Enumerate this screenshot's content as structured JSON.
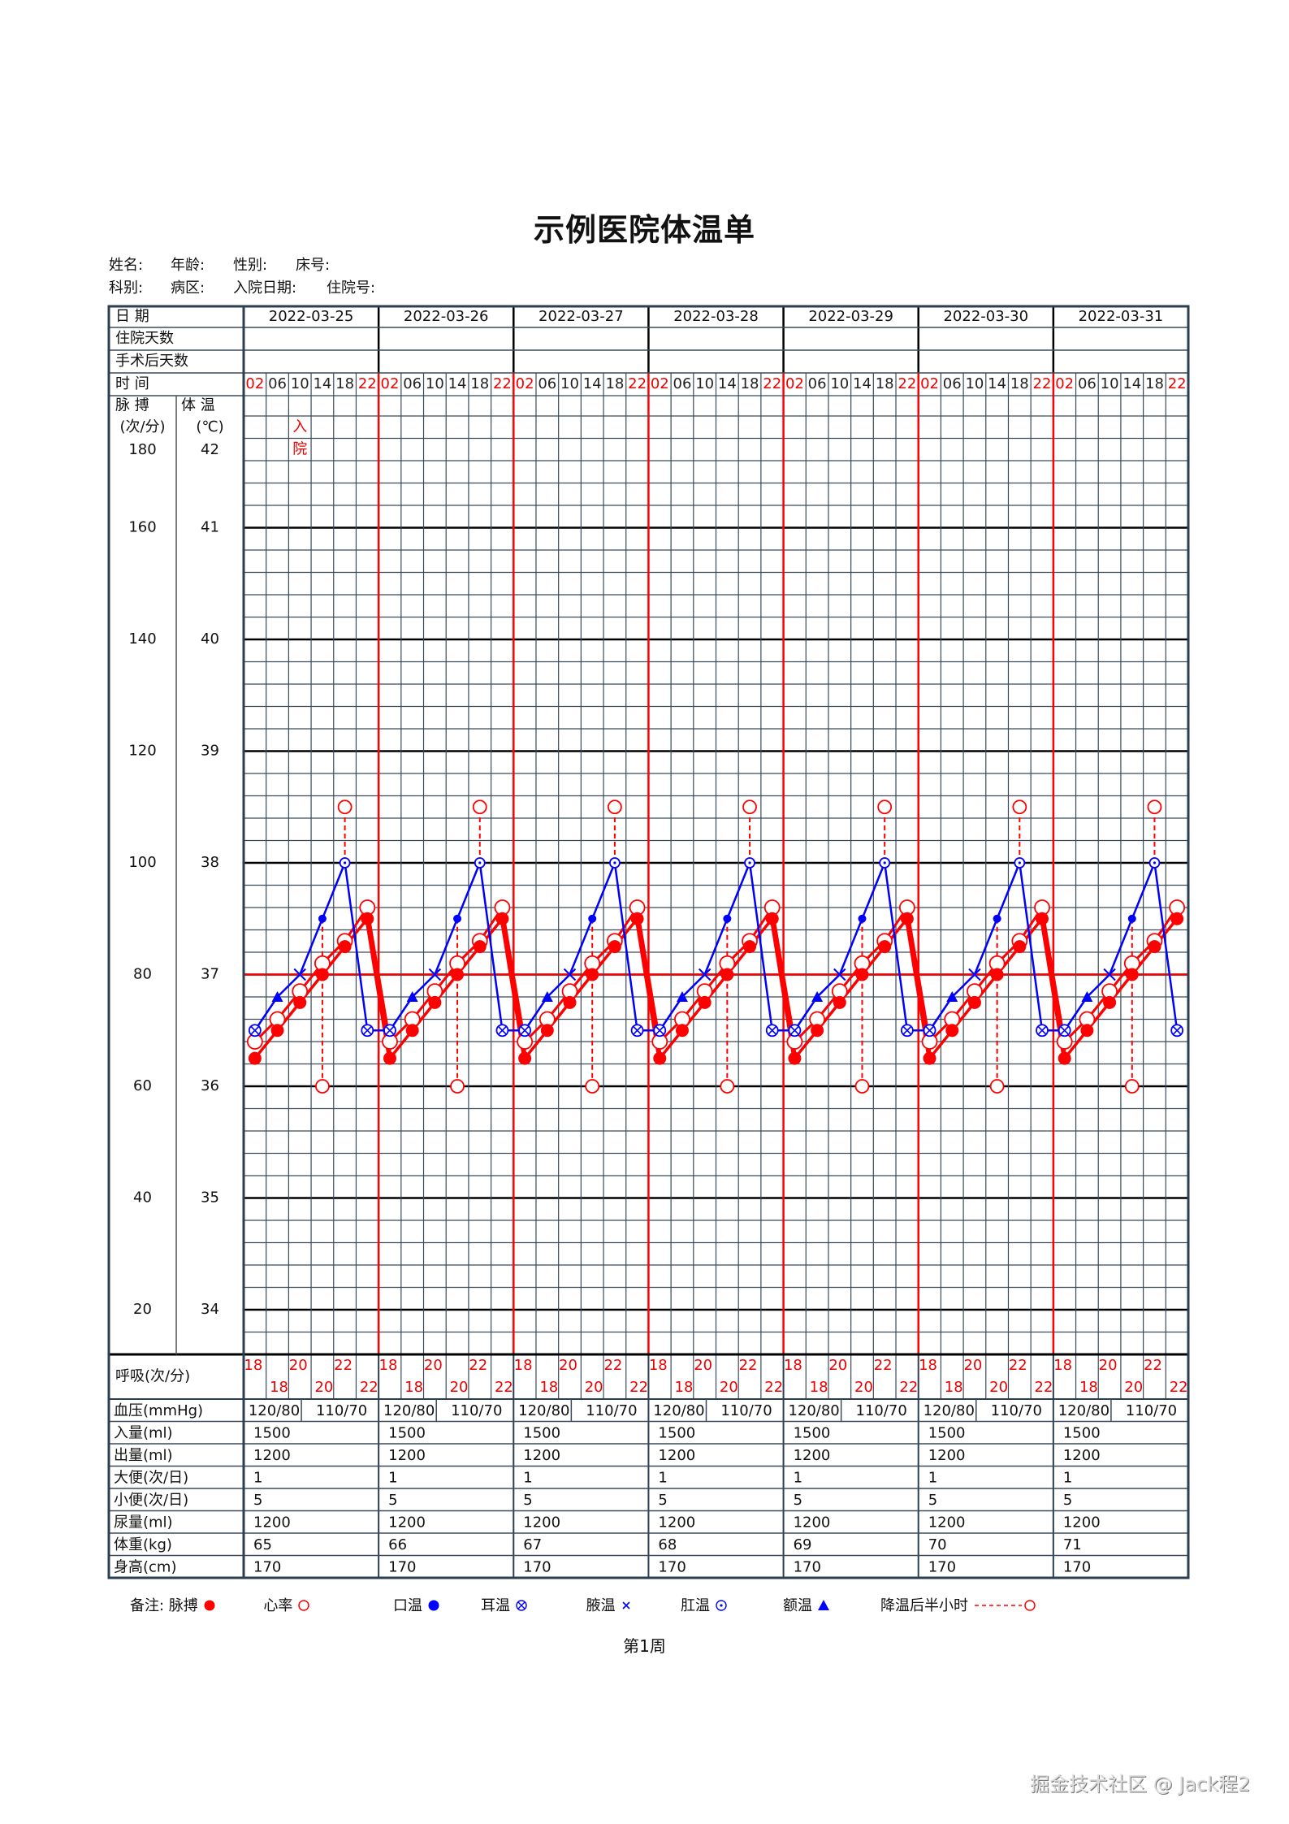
{
  "title": "示例医院体温单",
  "patient_info": {
    "row1": [
      {
        "label": "姓名:",
        "value": ""
      },
      {
        "label": "年龄:",
        "value": ""
      },
      {
        "label": "性别:",
        "value": ""
      },
      {
        "label": "床号:",
        "value": ""
      }
    ],
    "row2": [
      {
        "label": "科别:",
        "value": ""
      },
      {
        "label": "病区:",
        "value": ""
      },
      {
        "label": "入院日期:",
        "value": ""
      },
      {
        "label": "住院号:",
        "value": ""
      }
    ]
  },
  "row_labels": {
    "date": "日 期",
    "hospital_days": "住院天数",
    "post_op_days": "手术后天数",
    "time": "时 间",
    "pulse": "脉 搏",
    "temp": "体 温",
    "pulse_unit": "(次/分)",
    "temp_unit": "(℃)",
    "respiration": "呼吸(次/分)",
    "blood_pressure": "血压(mmHg)",
    "intake": "入量(ml)",
    "output": "出量(ml)",
    "stool": "大便(次/日)",
    "urination": "小便(次/日)",
    "urine_volume": "尿量(ml)",
    "weight": "体重(kg)",
    "height": "身高(cm)"
  },
  "time_slots": [
    "02",
    "06",
    "10",
    "14",
    "18",
    "22"
  ],
  "red_time_slots": [
    "02",
    "22"
  ],
  "pulse_axis": [
    180,
    160,
    140,
    120,
    100,
    80,
    60,
    40,
    20
  ],
  "temp_axis": [
    42,
    41,
    40,
    39,
    38,
    37,
    36,
    35,
    34
  ],
  "admission_note": [
    "入",
    "院"
  ],
  "days": [
    {
      "date": "2022-03-25",
      "hospital_days": "",
      "post_op_days": "",
      "respiration": [
        18,
        18,
        20,
        20,
        22,
        22
      ],
      "bp": [
        "120/80",
        "110/70"
      ],
      "intake": "1500",
      "output": "1200",
      "stool": "1",
      "urination": "5",
      "urine_volume": "1200",
      "weight": "65",
      "height": "170"
    },
    {
      "date": "2022-03-26",
      "hospital_days": "",
      "post_op_days": "",
      "respiration": [
        18,
        18,
        20,
        20,
        22,
        22
      ],
      "bp": [
        "120/80",
        "110/70"
      ],
      "intake": "1500",
      "output": "1200",
      "stool": "1",
      "urination": "5",
      "urine_volume": "1200",
      "weight": "66",
      "height": "170"
    },
    {
      "date": "2022-03-27",
      "hospital_days": "",
      "post_op_days": "",
      "respiration": [
        18,
        18,
        20,
        20,
        22,
        22
      ],
      "bp": [
        "120/80",
        "110/70"
      ],
      "intake": "1500",
      "output": "1200",
      "stool": "1",
      "urination": "5",
      "urine_volume": "1200",
      "weight": "67",
      "height": "170"
    },
    {
      "date": "2022-03-28",
      "hospital_days": "",
      "post_op_days": "",
      "respiration": [
        18,
        18,
        20,
        20,
        22,
        22
      ],
      "bp": [
        "120/80",
        "110/70"
      ],
      "intake": "1500",
      "output": "1200",
      "stool": "1",
      "urination": "5",
      "urine_volume": "1200",
      "weight": "68",
      "height": "170"
    },
    {
      "date": "2022-03-29",
      "hospital_days": "",
      "post_op_days": "",
      "respiration": [
        18,
        18,
        20,
        20,
        22,
        22
      ],
      "bp": [
        "120/80",
        "110/70"
      ],
      "intake": "1500",
      "output": "1200",
      "stool": "1",
      "urination": "5",
      "urine_volume": "1200",
      "weight": "69",
      "height": "170"
    },
    {
      "date": "2022-03-30",
      "hospital_days": "",
      "post_op_days": "",
      "respiration": [
        18,
        18,
        20,
        20,
        22,
        22
      ],
      "bp": [
        "120/80",
        "110/70"
      ],
      "intake": "1500",
      "output": "1200",
      "stool": "1",
      "urination": "5",
      "urine_volume": "1200",
      "weight": "70",
      "height": "170"
    },
    {
      "date": "2022-03-31",
      "hospital_days": "",
      "post_op_days": "",
      "respiration": [
        18,
        18,
        20,
        20,
        22,
        22
      ],
      "bp": [
        "120/80",
        "110/70"
      ],
      "intake": "1500",
      "output": "1200",
      "stool": "1",
      "urination": "5",
      "urine_volume": "1200",
      "weight": "71",
      "height": "170"
    }
  ],
  "legend": {
    "prefix": "备注:",
    "items": [
      {
        "label": "脉搏",
        "symbol": "filled-circle",
        "color": "#ff0000"
      },
      {
        "label": "心率",
        "symbol": "open-circle",
        "color": "#ff0000"
      },
      {
        "label": "口温",
        "symbol": "filled-circle",
        "color": "#0000ff"
      },
      {
        "label": "耳温",
        "symbol": "circle-x",
        "color": "#0000ff"
      },
      {
        "label": "腋温",
        "symbol": "x",
        "color": "#0000ff"
      },
      {
        "label": "肛温",
        "symbol": "circle-dot",
        "color": "#0000ff"
      },
      {
        "label": "额温",
        "symbol": "triangle",
        "color": "#0000ff"
      },
      {
        "label": "降温后半小时",
        "symbol": "dashed-open-circle",
        "color": "#ff0000"
      }
    ]
  },
  "week_label": "第1周",
  "watermark": "掘金技术社区 @ Jack程2",
  "colors": {
    "temp": "#0000ff",
    "pulse": "#ff0000",
    "heart_rate": "#ff0000",
    "grid": "#2c3e50",
    "day_divider": "#ff0000",
    "normal_line": "#ff0000"
  },
  "chart_data": {
    "type": "line",
    "title": "示例医院体温单",
    "x": [
      "03-25 02",
      "03-25 06",
      "03-25 10",
      "03-25 14",
      "03-25 18",
      "03-25 22",
      "03-26 02",
      "03-26 06",
      "03-26 10",
      "03-26 14",
      "03-26 18",
      "03-26 22",
      "03-27 02",
      "03-27 06",
      "03-27 10",
      "03-27 14",
      "03-27 18",
      "03-27 22",
      "03-28 02",
      "03-28 06",
      "03-28 10",
      "03-28 14",
      "03-28 18",
      "03-28 22",
      "03-29 02",
      "03-29 06",
      "03-29 10",
      "03-29 14",
      "03-29 18",
      "03-29 22",
      "03-30 02",
      "03-30 06",
      "03-30 10",
      "03-30 14",
      "03-30 18",
      "03-30 22",
      "03-31 02",
      "03-31 06",
      "03-31 10",
      "03-31 14",
      "03-31 18",
      "03-31 22"
    ],
    "xlabel": "时间",
    "ylabel_left": "脉搏(次/分)",
    "ylabel_right": "体温(℃)",
    "ylim_temp": [
      33.6,
      42
    ],
    "ylim_pulse": [
      12,
      180
    ],
    "grid": true,
    "daily_pattern": {
      "temperature_c": [
        36.5,
        36.8,
        37.0,
        37.5,
        38.0,
        36.5
      ],
      "temperature_method": [
        "耳温",
        "额温",
        "腋温",
        "口温",
        "肛温",
        "耳温"
      ],
      "pulse_bpm": [
        65,
        70,
        75,
        80,
        85,
        90
      ],
      "heart_rate_bpm": [
        68,
        72,
        77,
        82,
        86,
        92
      ],
      "cooling_after_half_hour": [
        {
          "slot": "14",
          "temp_c": 36.0,
          "from_c": 37.5
        },
        {
          "slot": "18",
          "temp_c": 38.5,
          "from_c": 38.0
        }
      ]
    },
    "series": [
      {
        "name": "体温",
        "unit": "℃",
        "color": "#0000ff",
        "values": [
          36.5,
          36.8,
          37.0,
          37.5,
          38.0,
          36.5,
          36.5,
          36.8,
          37.0,
          37.5,
          38.0,
          36.5,
          36.5,
          36.8,
          37.0,
          37.5,
          38.0,
          36.5,
          36.5,
          36.8,
          37.0,
          37.5,
          38.0,
          36.5,
          36.5,
          36.8,
          37.0,
          37.5,
          38.0,
          36.5,
          36.5,
          36.8,
          37.0,
          37.5,
          38.0,
          36.5,
          36.5,
          36.8,
          37.0,
          37.5,
          38.0,
          36.5
        ]
      },
      {
        "name": "脉搏",
        "unit": "次/分",
        "color": "#ff0000",
        "values": [
          65,
          70,
          75,
          80,
          85,
          90,
          65,
          70,
          75,
          80,
          85,
          90,
          65,
          70,
          75,
          80,
          85,
          90,
          65,
          70,
          75,
          80,
          85,
          90,
          65,
          70,
          75,
          80,
          85,
          90,
          65,
          70,
          75,
          80,
          85,
          90,
          65,
          70,
          75,
          80,
          85,
          90
        ]
      },
      {
        "name": "心率",
        "unit": "次/分",
        "color": "#ff0000",
        "values": [
          68,
          72,
          77,
          82,
          86,
          92,
          68,
          72,
          77,
          82,
          86,
          92,
          68,
          72,
          77,
          82,
          86,
          92,
          68,
          72,
          77,
          82,
          86,
          92,
          68,
          72,
          77,
          82,
          86,
          92,
          68,
          72,
          77,
          82,
          86,
          92,
          68,
          72,
          77,
          82,
          86,
          92
        ]
      }
    ],
    "reference_line": {
      "temp_c": 37,
      "color": "#ff0000"
    }
  }
}
